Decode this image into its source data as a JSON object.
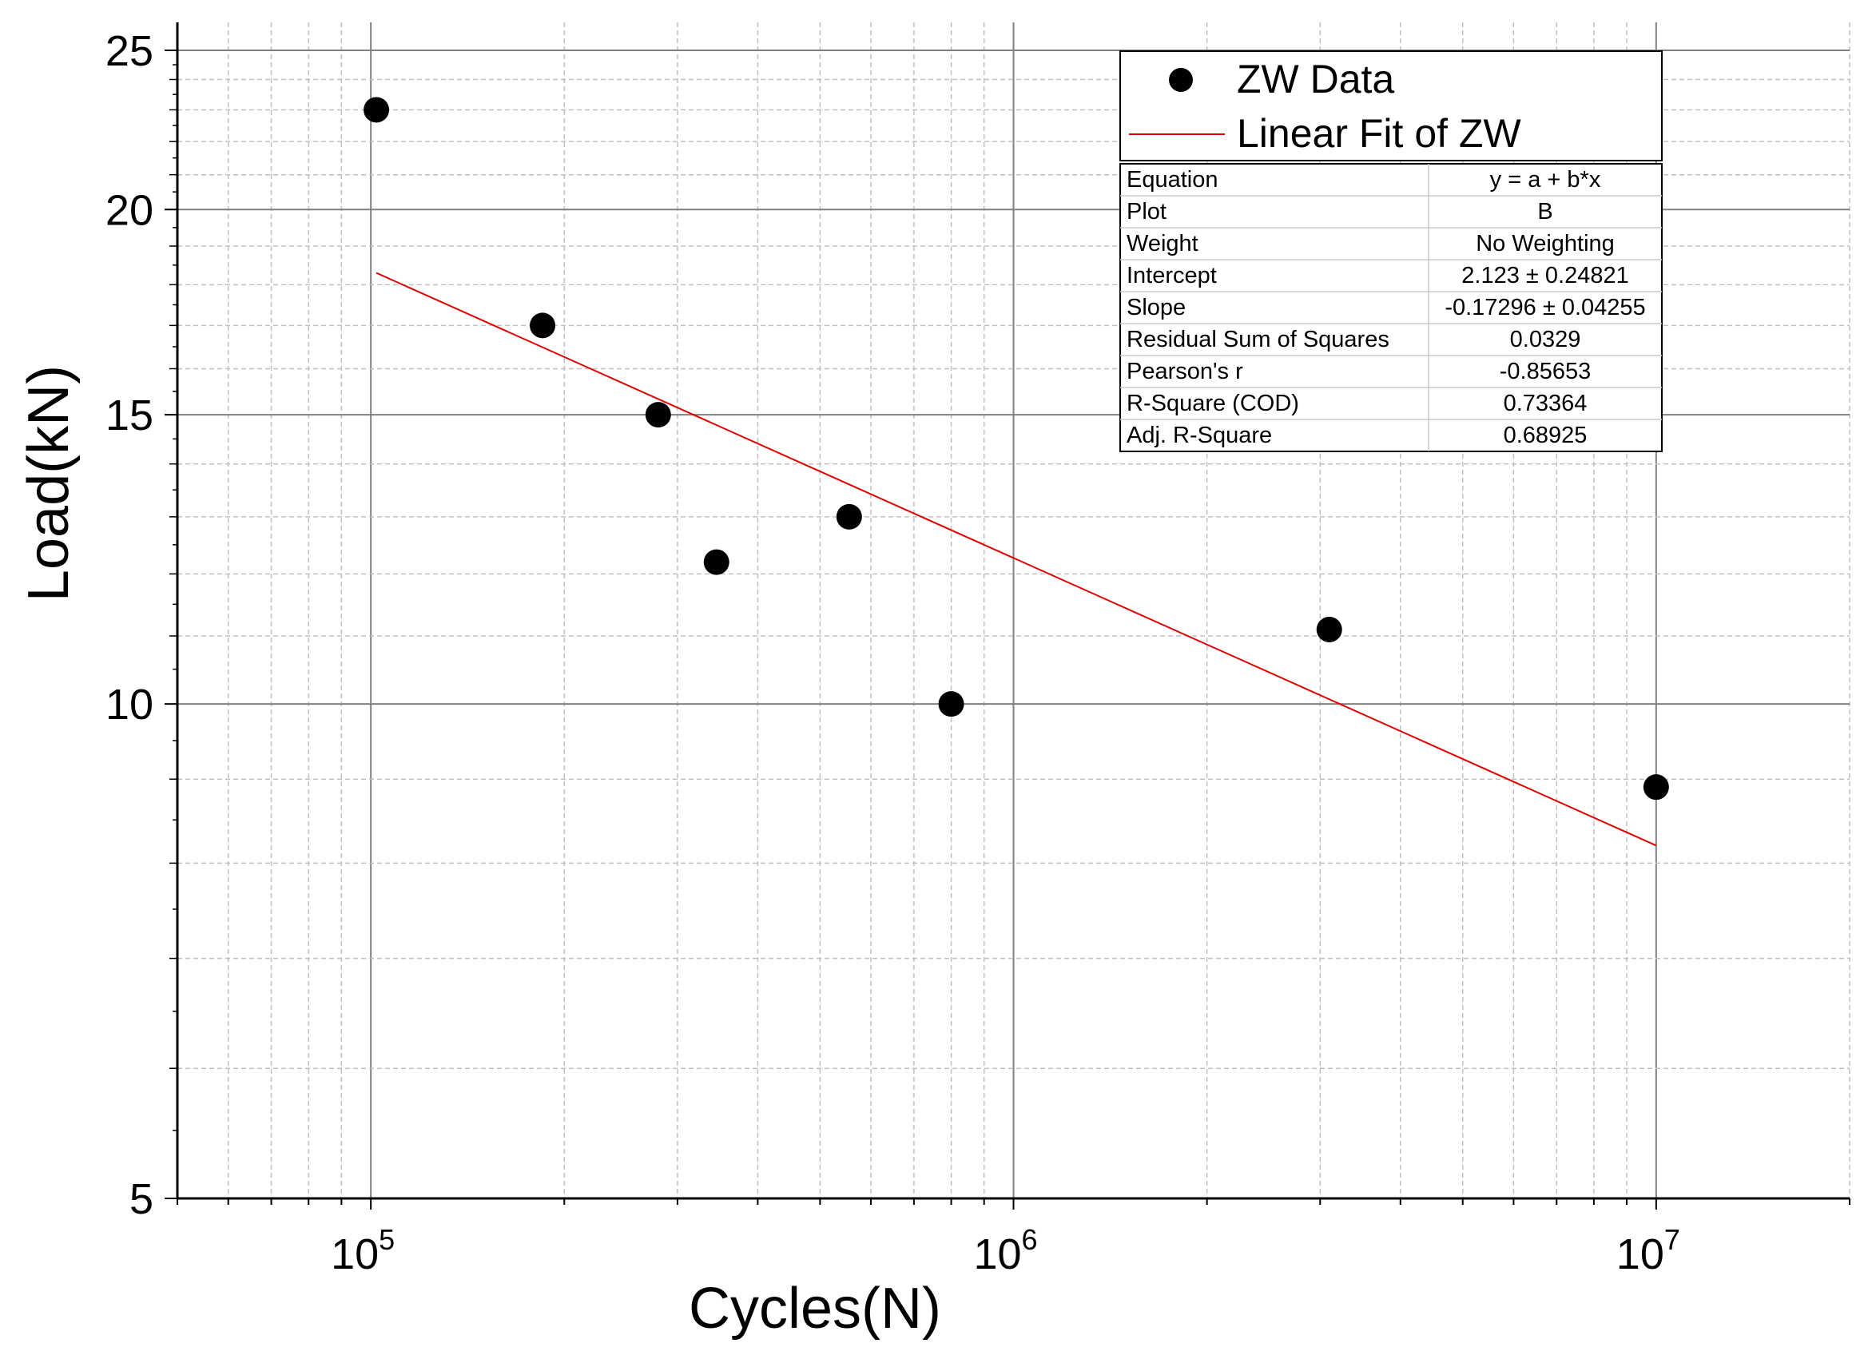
{
  "chart_data": {
    "type": "scatter",
    "x_scale": "log",
    "y_scale": "log",
    "xlabel": "Cycles(N)",
    "ylabel": "Load(kN)",
    "xlim": [
      50000,
      20000000
    ],
    "ylim": [
      5,
      26
    ],
    "x_ticks": [
      {
        "value": 100000,
        "base": "10",
        "exp": "5"
      },
      {
        "value": 1000000,
        "base": "10",
        "exp": "6"
      },
      {
        "value": 10000000,
        "base": "10",
        "exp": "7"
      }
    ],
    "y_ticks": [
      {
        "value": 5,
        "label": "5"
      },
      {
        "value": 10,
        "label": "10"
      },
      {
        "value": 15,
        "label": "15"
      },
      {
        "value": 20,
        "label": "20"
      },
      {
        "value": 25,
        "label": "25"
      }
    ],
    "grid": true,
    "series": [
      {
        "name": "ZW Data",
        "kind": "scatter",
        "color": "#000000",
        "x": [
          102000,
          185000,
          280000,
          345000,
          555000,
          800000,
          3100000,
          10000000
        ],
        "y": [
          23.0,
          17.0,
          15.0,
          12.2,
          13.0,
          10.0,
          11.1,
          8.9
        ]
      },
      {
        "name": "Linear Fit of ZW",
        "kind": "line",
        "color": "#e00000",
        "x": [
          102000,
          10000000
        ],
        "y": [
          18.3,
          8.2
        ]
      }
    ],
    "legend": {
      "position": "top-right"
    },
    "fit_stats": [
      {
        "label": "Equation",
        "value": "y = a + b*x"
      },
      {
        "label": "Plot",
        "value": "B"
      },
      {
        "label": "Weight",
        "value": "No Weighting"
      },
      {
        "label": "Intercept",
        "value": "2.123 ± 0.24821"
      },
      {
        "label": "Slope",
        "value": "-0.17296 ± 0.04255"
      },
      {
        "label": "Residual Sum of Squares",
        "value": "0.0329"
      },
      {
        "label": "Pearson's r",
        "value": "-0.85653"
      },
      {
        "label": "R-Square (COD)",
        "value": "0.73364"
      },
      {
        "label": "Adj. R-Square",
        "value": "0.68925"
      }
    ]
  }
}
